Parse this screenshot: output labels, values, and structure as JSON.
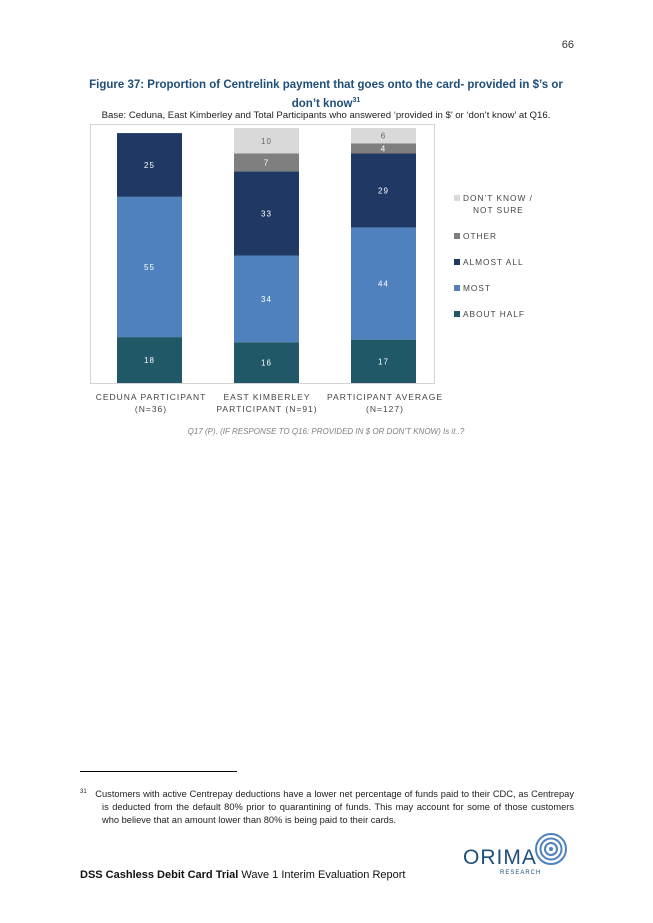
{
  "page_number": "66",
  "figure": {
    "title": "Figure 37: Proportion of Centrelink payment that goes onto the card- provided in $’s or don’t know",
    "title_sup": "31",
    "base": "Base: Ceduna, East Kimberley and Total Participants who answered ‘provided in $’ or ‘don’t know’ at Q16."
  },
  "chart_data": {
    "type": "bar",
    "stacked": true,
    "categories": [
      "CEDUNA PARTICIPANT (N=36)",
      "EAST KIMBERLEY PARTICIPANT (N=91)",
      "PARTICIPANT AVERAGE (N=127)"
    ],
    "category_lines": [
      [
        "CEDUNA PARTICIPANT",
        "(N=36)"
      ],
      [
        "EAST KIMBERLEY",
        "PARTICIPANT (N=91)"
      ],
      [
        "PARTICIPANT AVERAGE",
        "(N=127)"
      ]
    ],
    "series": [
      {
        "name": "ABOUT HALF",
        "color": "#215868",
        "values": [
          18,
          16,
          17
        ]
      },
      {
        "name": "MOST",
        "color": "#4f81bd",
        "values": [
          55,
          34,
          44
        ]
      },
      {
        "name": "ALMOST ALL",
        "color": "#1f3864",
        "values": [
          25,
          33,
          29
        ]
      },
      {
        "name": "OTHER",
        "color": "#7f7f7f",
        "values": [
          null,
          7,
          4
        ]
      },
      {
        "name": "DON’T KNOW / NOT SURE",
        "color": "#d9d9d9",
        "values": [
          null,
          10,
          6
        ]
      }
    ],
    "legend_order": [
      "DON’T KNOW / NOT SURE",
      "OTHER",
      "ALMOST ALL",
      "MOST",
      "ABOUT HALF"
    ],
    "legend_position": "right",
    "ylim": [
      0,
      100
    ],
    "grid": false
  },
  "chart_note": "Q17 (P). (IF RESPONSE TO Q16: PROVIDED IN $ OR DON’T KNOW) Is it..?",
  "footnote": {
    "marker": "31",
    "text": "Customers with active Centrepay deductions have a lower net percentage of funds paid to their CDC, as Centrepay is deducted from the default 80% prior to quarantining of funds. This may account for some of those customers who believe that an amount lower than 80% is being paid to their cards."
  },
  "footer": {
    "bold": "DSS Cashless Debit Card Trial",
    "rest": " Wave 1 Interim Evaluation Report"
  },
  "logo": {
    "name": "ORIMA",
    "sub": "RESEARCH"
  }
}
